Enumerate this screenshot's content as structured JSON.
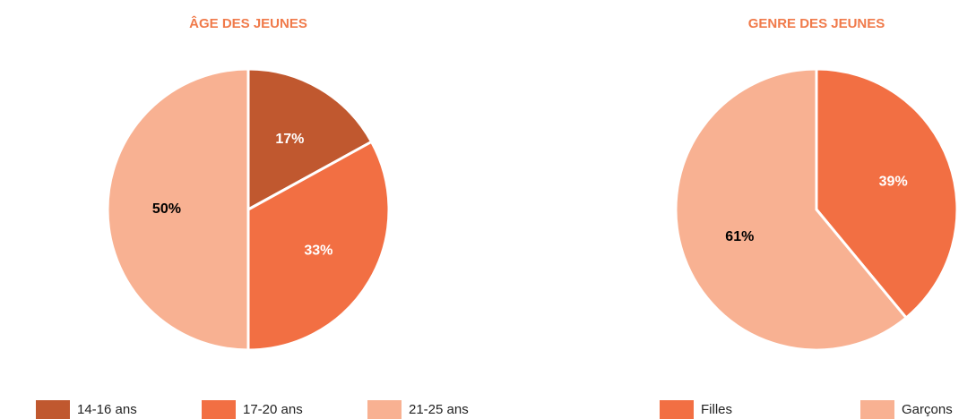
{
  "chart_data": [
    {
      "type": "pie",
      "title": "ÂGE DES JEUNES",
      "categories": [
        "14-16 ans",
        "17-20 ans",
        "21-25 ans"
      ],
      "values": [
        17,
        33,
        50
      ],
      "value_labels": [
        "17%",
        "33%",
        "50%"
      ],
      "colors": [
        "#c0582f",
        "#f26f43",
        "#f8b192"
      ]
    },
    {
      "type": "pie",
      "title": "GENRE DES JEUNES",
      "categories": [
        "Filles",
        "Garçons"
      ],
      "values": [
        39,
        61
      ],
      "value_labels": [
        "39%",
        "61%"
      ],
      "colors": [
        "#f26f43",
        "#f8b192"
      ]
    }
  ]
}
